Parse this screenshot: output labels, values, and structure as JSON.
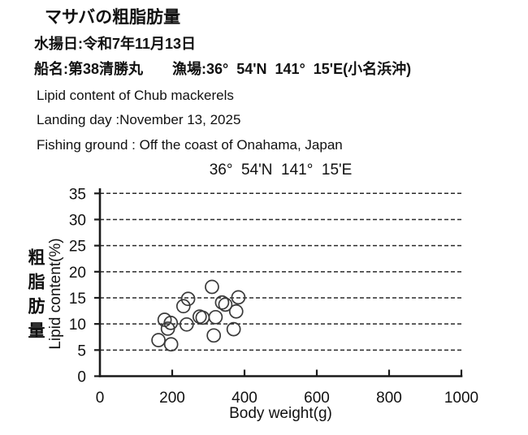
{
  "header": {
    "title_jp": "マサバの粗脂肪量",
    "landing_jp": "水揚日:令和7年11月13日",
    "vessel_jp": "船名:第38清勝丸　　漁場:36°  54'N  141°  15'E(小名浜沖)",
    "subtitle_en": "Lipid content of Chub mackerels",
    "landing_en": "Landing day :November 13, 2025",
    "ground_en": "Fishing ground : Off the coast of Onahama, Japan"
  },
  "chart_data": {
    "type": "scatter",
    "title": "36°  54'N  141°  15'E",
    "xlabel": "Body weight(g)",
    "ylabel_jp": "粗脂肪量",
    "ylabel_en": "Lipid content(%)",
    "xlim": [
      0,
      1000
    ],
    "ylim": [
      0,
      35
    ],
    "x_ticks": [
      0,
      200,
      400,
      600,
      800,
      1000
    ],
    "y_ticks": [
      0,
      5,
      10,
      15,
      20,
      25,
      30,
      35
    ],
    "grid": "horizontal-dashed",
    "legend": "none",
    "marker": "open-circle",
    "points": [
      [
        310,
        17.1
      ],
      [
        244,
        14.8
      ],
      [
        231,
        13.4
      ],
      [
        338,
        14.1
      ],
      [
        347,
        13.7
      ],
      [
        383,
        15.1
      ],
      [
        377,
        12.4
      ],
      [
        276,
        11.4
      ],
      [
        284,
        11.2
      ],
      [
        320,
        11.3
      ],
      [
        179,
        10.8
      ],
      [
        196,
        10.2
      ],
      [
        188,
        9.1
      ],
      [
        240,
        9.9
      ],
      [
        370,
        9.0
      ],
      [
        315,
        7.8
      ],
      [
        162,
        6.9
      ],
      [
        197,
        6.1
      ]
    ]
  },
  "colors": {
    "background": "#ffffff",
    "text": "#111111",
    "axis": "#1a1a1a",
    "grid": "#2a2a2a",
    "marker": "#3a3a3a"
  }
}
